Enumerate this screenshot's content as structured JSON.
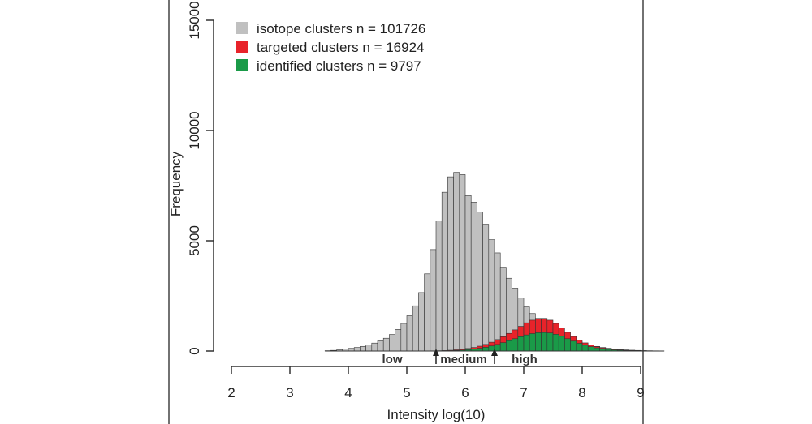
{
  "chart_data": {
    "type": "bar",
    "title": "",
    "xlabel": "Intensity log(10)",
    "ylabel": "Frequency",
    "xlim": [
      2,
      9
    ],
    "ylim": [
      0,
      15000
    ],
    "xticks": [
      "2",
      "3",
      "4",
      "5",
      "6",
      "7",
      "8",
      "9"
    ],
    "yticks": [
      "0",
      "5000",
      "10000",
      "15000"
    ],
    "bin_width": 0.1,
    "bin_start": 3.6,
    "series": [
      {
        "name": "isotope clusters n = 101726",
        "color": "#c0c0c0",
        "values": [
          15,
          30,
          55,
          85,
          120,
          160,
          210,
          280,
          360,
          460,
          580,
          750,
          980,
          1250,
          1600,
          2050,
          2650,
          3500,
          4600,
          5900,
          7200,
          7900,
          8100,
          8000,
          7050,
          6750,
          6300,
          5750,
          5050,
          4450,
          3800,
          3300,
          2850,
          2400,
          2000,
          1700,
          1450,
          1300,
          1150,
          950,
          800,
          650,
          520,
          420,
          340,
          270,
          210,
          160,
          125,
          95,
          70,
          52,
          38,
          28,
          20,
          14,
          9,
          6
        ]
      },
      {
        "name": "targeted clusters n = 16924",
        "color": "#e8232a",
        "values": [
          0,
          0,
          0,
          0,
          0,
          0,
          0,
          0,
          0,
          0,
          0,
          0,
          0,
          0,
          0,
          0,
          2,
          4,
          8,
          14,
          22,
          35,
          55,
          80,
          115,
          160,
          220,
          300,
          400,
          520,
          650,
          800,
          960,
          1120,
          1280,
          1400,
          1480,
          1480,
          1400,
          1250,
          1050,
          850,
          660,
          500,
          370,
          270,
          200,
          145,
          105,
          75,
          52,
          36,
          25,
          17,
          11,
          7,
          4,
          2
        ]
      },
      {
        "name": "identified clusters n = 9797",
        "color": "#1a9a48",
        "values": [
          0,
          0,
          0,
          0,
          0,
          0,
          0,
          0,
          0,
          0,
          0,
          0,
          0,
          0,
          0,
          0,
          1,
          2,
          4,
          7,
          11,
          18,
          28,
          42,
          62,
          88,
          125,
          170,
          230,
          300,
          380,
          470,
          560,
          650,
          730,
          790,
          830,
          840,
          820,
          760,
          670,
          560,
          450,
          350,
          265,
          195,
          145,
          105,
          75,
          54,
          38,
          27,
          18,
          12,
          8,
          5,
          3,
          1
        ]
      }
    ],
    "legend": {
      "position": "top-left",
      "items": [
        {
          "label": "isotope clusters n = 101726",
          "color": "#c0c0c0"
        },
        {
          "label": "targeted clusters n = 16924",
          "color": "#e8232a"
        },
        {
          "label": "identified clusters n = 9797",
          "color": "#1a9a48"
        }
      ]
    },
    "annotations": [
      {
        "text": "low",
        "x": 4.9
      },
      {
        "text": "medium",
        "x": 6.0
      },
      {
        "text": "high",
        "x": 6.95
      }
    ],
    "arrows": [
      5.5,
      6.5
    ]
  }
}
